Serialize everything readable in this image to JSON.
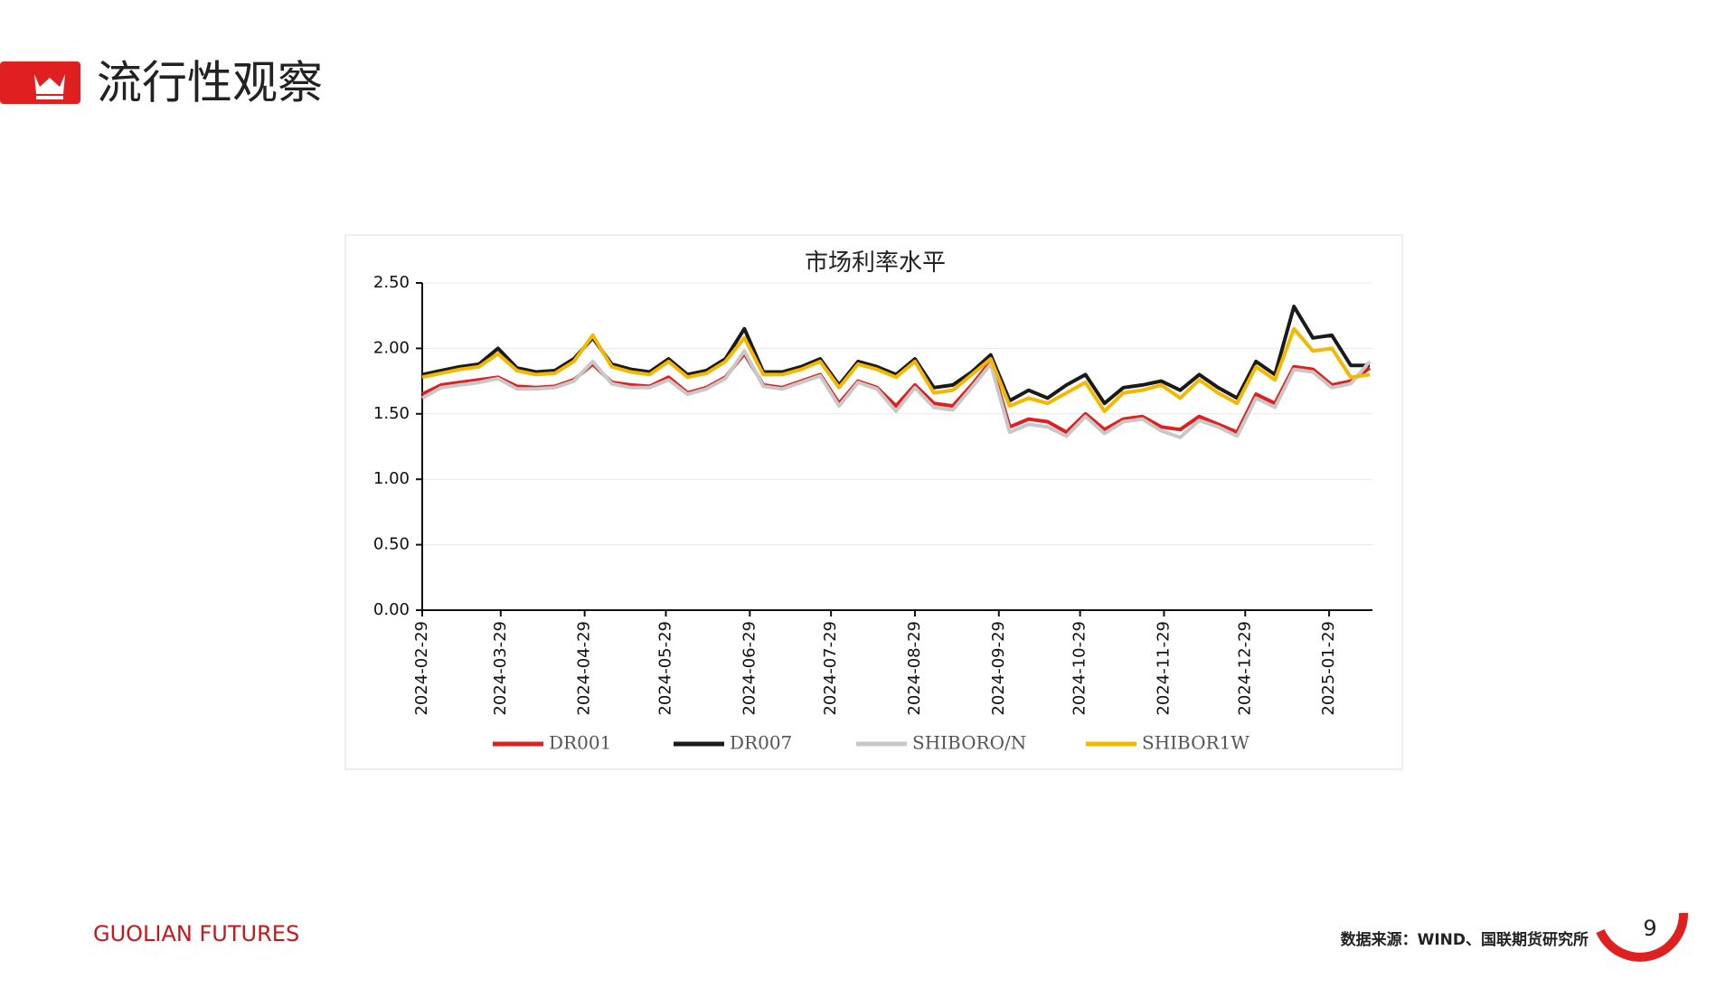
{
  "header": {
    "title": "流行性观察"
  },
  "chart_data": {
    "type": "line",
    "title": "市场利率水平",
    "x": [
      "2024-02-29",
      "2024-03-07",
      "2024-03-14",
      "2024-03-21",
      "2024-03-28",
      "2024-04-04",
      "2024-04-11",
      "2024-04-18",
      "2024-04-25",
      "2024-05-02",
      "2024-05-09",
      "2024-05-16",
      "2024-05-23",
      "2024-05-30",
      "2024-06-06",
      "2024-06-13",
      "2024-06-20",
      "2024-06-27",
      "2024-07-04",
      "2024-07-11",
      "2024-07-18",
      "2024-07-25",
      "2024-08-01",
      "2024-08-08",
      "2024-08-15",
      "2024-08-22",
      "2024-08-29",
      "2024-09-05",
      "2024-09-12",
      "2024-09-19",
      "2024-09-26",
      "2024-10-03",
      "2024-10-10",
      "2024-10-17",
      "2024-10-24",
      "2024-10-31",
      "2024-11-07",
      "2024-11-14",
      "2024-11-21",
      "2024-11-28",
      "2024-12-05",
      "2024-12-12",
      "2024-12-19",
      "2024-12-26",
      "2025-01-02",
      "2025-01-09",
      "2025-01-16",
      "2025-01-23",
      "2025-01-30",
      "2025-02-06",
      "2025-02-13"
    ],
    "series": [
      {
        "name": "DR001",
        "color": "#e02020",
        "values": [
          1.65,
          1.72,
          1.74,
          1.76,
          1.78,
          1.71,
          1.7,
          1.71,
          1.76,
          1.88,
          1.74,
          1.72,
          1.71,
          1.78,
          1.66,
          1.7,
          1.78,
          1.96,
          1.72,
          1.7,
          1.75,
          1.8,
          1.58,
          1.75,
          1.7,
          1.56,
          1.72,
          1.58,
          1.56,
          1.72,
          1.9,
          1.4,
          1.46,
          1.44,
          1.36,
          1.5,
          1.38,
          1.46,
          1.48,
          1.4,
          1.38,
          1.48,
          1.42,
          1.36,
          1.65,
          1.58,
          1.86,
          1.84,
          1.72,
          1.75,
          1.85
        ]
      },
      {
        "name": "DR007",
        "color": "#1a1a1a",
        "values": [
          1.8,
          1.83,
          1.86,
          1.88,
          2.0,
          1.85,
          1.82,
          1.83,
          1.92,
          2.08,
          1.88,
          1.84,
          1.82,
          1.92,
          1.8,
          1.83,
          1.92,
          2.15,
          1.82,
          1.82,
          1.86,
          1.92,
          1.72,
          1.9,
          1.86,
          1.8,
          1.92,
          1.7,
          1.72,
          1.82,
          1.95,
          1.6,
          1.68,
          1.62,
          1.72,
          1.8,
          1.58,
          1.7,
          1.72,
          1.75,
          1.68,
          1.8,
          1.7,
          1.62,
          1.9,
          1.8,
          2.32,
          2.08,
          2.1,
          1.87,
          1.87
        ]
      },
      {
        "name": "SHIBORO/N",
        "color": "#c8c8c8",
        "values": [
          1.62,
          1.7,
          1.72,
          1.74,
          1.77,
          1.69,
          1.69,
          1.7,
          1.75,
          1.9,
          1.73,
          1.7,
          1.7,
          1.76,
          1.65,
          1.69,
          1.77,
          1.98,
          1.71,
          1.69,
          1.74,
          1.79,
          1.56,
          1.74,
          1.69,
          1.52,
          1.7,
          1.55,
          1.53,
          1.7,
          1.88,
          1.36,
          1.42,
          1.4,
          1.33,
          1.48,
          1.35,
          1.44,
          1.46,
          1.37,
          1.32,
          1.45,
          1.4,
          1.33,
          1.62,
          1.55,
          1.84,
          1.82,
          1.7,
          1.73,
          1.9
        ]
      },
      {
        "name": "SHIBOR1W",
        "color": "#f5b800",
        "values": [
          1.78,
          1.81,
          1.84,
          1.86,
          1.96,
          1.83,
          1.8,
          1.81,
          1.9,
          2.1,
          1.86,
          1.82,
          1.8,
          1.9,
          1.78,
          1.81,
          1.9,
          2.08,
          1.8,
          1.8,
          1.84,
          1.9,
          1.7,
          1.88,
          1.84,
          1.78,
          1.9,
          1.66,
          1.68,
          1.8,
          1.92,
          1.56,
          1.62,
          1.58,
          1.66,
          1.74,
          1.52,
          1.66,
          1.68,
          1.72,
          1.62,
          1.76,
          1.66,
          1.58,
          1.86,
          1.76,
          2.15,
          1.98,
          2.0,
          1.78,
          1.8
        ]
      }
    ],
    "xlim": [
      "2024-02-29",
      "2025-02-14"
    ],
    "xticks": [
      "2024-02-29",
      "2024-03-29",
      "2024-04-29",
      "2024-05-29",
      "2024-06-29",
      "2024-07-29",
      "2024-08-29",
      "2024-09-29",
      "2024-10-29",
      "2024-11-29",
      "2024-12-29",
      "2025-01-29"
    ],
    "ylim": [
      0,
      2.5
    ],
    "yticks": [
      {
        "value": 0,
        "label": "0.00"
      },
      {
        "value": 0.5,
        "label": "0.50"
      },
      {
        "value": 1,
        "label": "1.00"
      },
      {
        "value": 1.5,
        "label": "1.50"
      },
      {
        "value": 2,
        "label": "2.00"
      },
      {
        "value": 2.5,
        "label": "2.50"
      }
    ],
    "grid": true,
    "legend": "bottom"
  },
  "footer": {
    "brand": "GUOLIAN FUTURES",
    "source": "数据来源：WIND、国联期货研究所",
    "page": "9"
  }
}
